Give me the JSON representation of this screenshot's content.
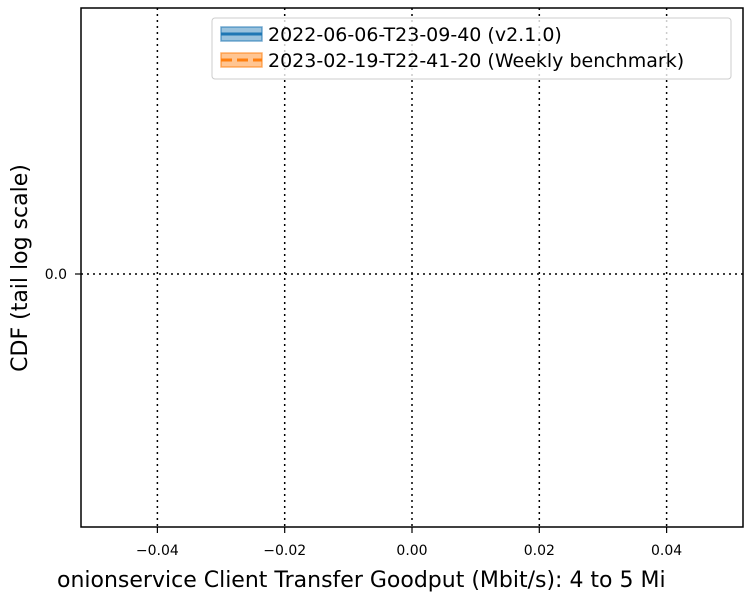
{
  "chart_data": {
    "type": "line",
    "xlabel": "onionservice Client Transfer Goodput (Mbit/s): 4 to 5 Mi",
    "ylabel": "CDF (tail log scale)",
    "xlim": [
      -0.052,
      0.052
    ],
    "x_ticks": [
      {
        "value": -0.04,
        "label": "−0.04"
      },
      {
        "value": -0.02,
        "label": "−0.02"
      },
      {
        "value": 0.0,
        "label": "0.00"
      },
      {
        "value": 0.02,
        "label": "0.02"
      },
      {
        "value": 0.04,
        "label": "0.04"
      }
    ],
    "y_ticks": [
      {
        "value": 0.0,
        "label": "0.0"
      }
    ],
    "grid": true,
    "grid_style": "dotted",
    "legend_position": "top-right",
    "series": [
      {
        "name": "2022-06-06-T23-09-40 (v2.1.0)",
        "color": "#1f77b4",
        "line_style": "solid",
        "values": []
      },
      {
        "name": "2023-02-19-T22-41-20 (Weekly benchmark)",
        "color": "#ff7f0e",
        "line_style": "dashed",
        "values": []
      }
    ]
  }
}
